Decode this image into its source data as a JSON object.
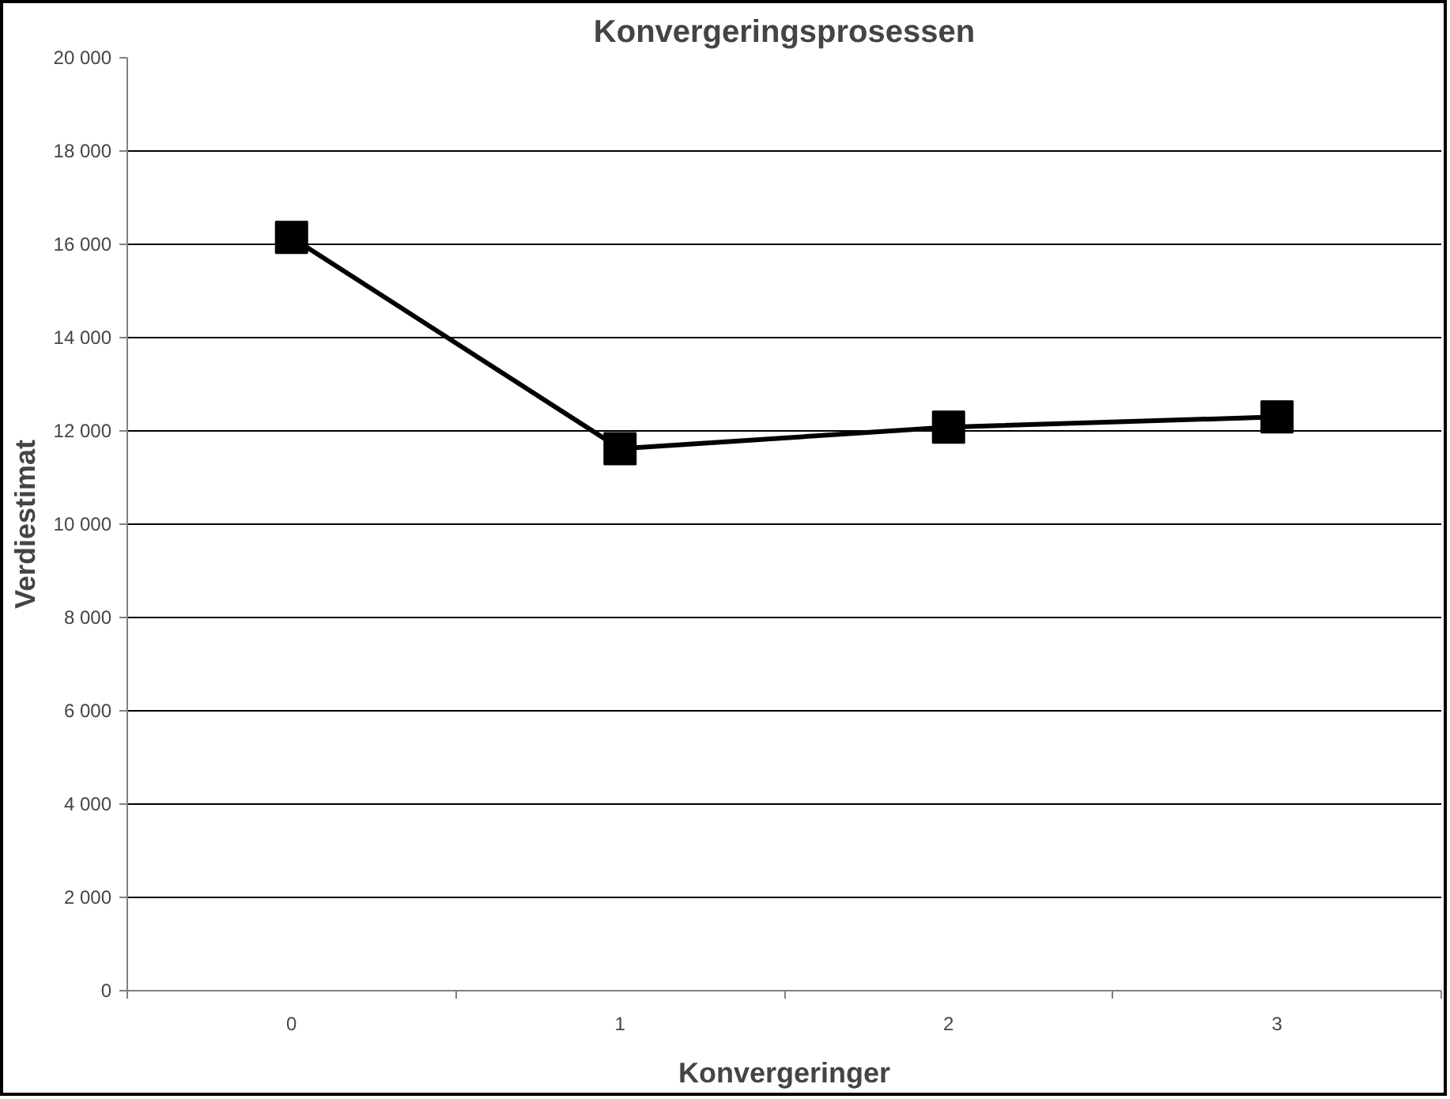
{
  "chart_data": {
    "type": "line",
    "title": "Konvergeringsprosessen",
    "xlabel": "Konvergeringer",
    "ylabel": "Verdiestimat",
    "categories": [
      "0",
      "1",
      "2",
      "3"
    ],
    "series": [
      {
        "color": "#000000",
        "values": [
          16150,
          11620,
          12080,
          12300
        ]
      }
    ],
    "ylim": [
      0,
      20000
    ],
    "yticks": [
      {
        "value": 0,
        "label": "0"
      },
      {
        "value": 2000,
        "label": "2 000"
      },
      {
        "value": 4000,
        "label": "4 000"
      },
      {
        "value": 6000,
        "label": "6 000"
      },
      {
        "value": 8000,
        "label": "8 000"
      },
      {
        "value": 10000,
        "label": "10 000"
      },
      {
        "value": 12000,
        "label": "12 000"
      },
      {
        "value": 14000,
        "label": "14 000"
      },
      {
        "value": 16000,
        "label": "16 000"
      },
      {
        "value": 18000,
        "label": "18 000"
      },
      {
        "value": 20000,
        "label": "20 000"
      }
    ],
    "grid": "y",
    "marker": "square",
    "line_style": "solid"
  }
}
